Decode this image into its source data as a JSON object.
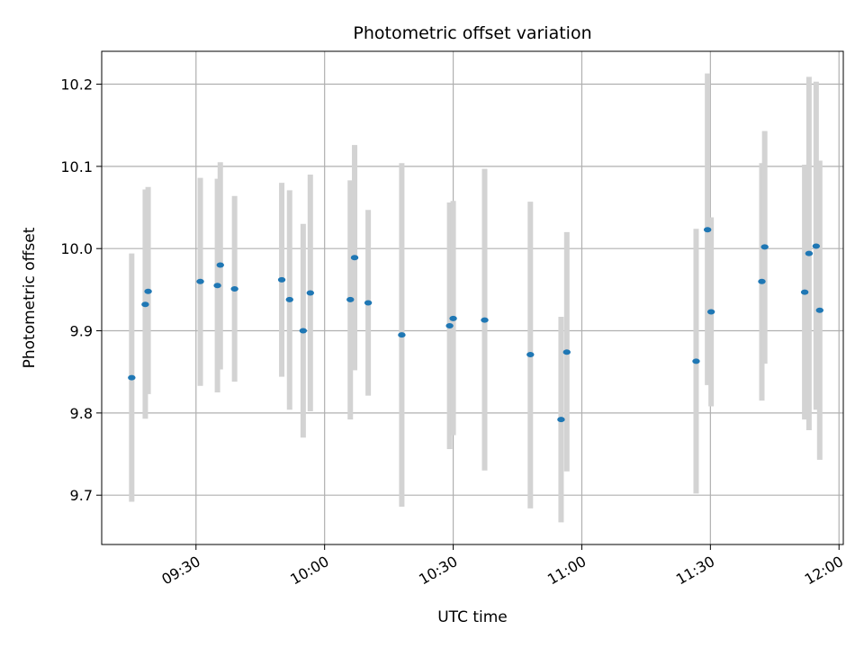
{
  "chart_data": {
    "type": "scatter",
    "title": "Photometric offset variation",
    "xlabel": "UTC time",
    "ylabel": "Photometric offset",
    "xlim": [
      "09:08",
      "12:01"
    ],
    "ylim": [
      9.64,
      10.24
    ],
    "xticks": [
      "09:30",
      "10:00",
      "10:30",
      "11:00",
      "11:30",
      "12:00"
    ],
    "yticks": [
      "9.7",
      "9.8",
      "9.9",
      "10.0",
      "10.1",
      "10.2"
    ],
    "grid": true,
    "legend": "none",
    "point_color": "#1f77b4",
    "errorbar_color": "#d3d3d3",
    "points": [
      {
        "x": "09:15:00",
        "y": 9.843,
        "ylow": 9.692,
        "yhigh": 9.994
      },
      {
        "x": "09:18:10",
        "y": 9.932,
        "ylow": 9.793,
        "yhigh": 10.072
      },
      {
        "x": "09:18:50",
        "y": 9.948,
        "ylow": 9.823,
        "yhigh": 10.075
      },
      {
        "x": "09:31:00",
        "y": 9.96,
        "ylow": 9.833,
        "yhigh": 10.086
      },
      {
        "x": "09:35:00",
        "y": 9.955,
        "ylow": 9.825,
        "yhigh": 10.085
      },
      {
        "x": "09:35:40",
        "y": 9.98,
        "ylow": 9.853,
        "yhigh": 10.105
      },
      {
        "x": "09:39:00",
        "y": 9.951,
        "ylow": 9.838,
        "yhigh": 10.064
      },
      {
        "x": "09:50:00",
        "y": 9.962,
        "ylow": 9.844,
        "yhigh": 10.08
      },
      {
        "x": "09:51:50",
        "y": 9.938,
        "ylow": 9.804,
        "yhigh": 10.071
      },
      {
        "x": "09:55:00",
        "y": 9.9,
        "ylow": 9.77,
        "yhigh": 10.03
      },
      {
        "x": "09:56:40",
        "y": 9.946,
        "ylow": 9.802,
        "yhigh": 10.09
      },
      {
        "x": "10:06:00",
        "y": 9.938,
        "ylow": 9.792,
        "yhigh": 10.083
      },
      {
        "x": "10:07:00",
        "y": 9.989,
        "ylow": 9.852,
        "yhigh": 10.126
      },
      {
        "x": "10:10:10",
        "y": 9.934,
        "ylow": 9.821,
        "yhigh": 10.047
      },
      {
        "x": "10:18:00",
        "y": 9.895,
        "ylow": 9.686,
        "yhigh": 10.104
      },
      {
        "x": "10:29:10",
        "y": 9.906,
        "ylow": 9.756,
        "yhigh": 10.056
      },
      {
        "x": "10:30:00",
        "y": 9.915,
        "ylow": 9.773,
        "yhigh": 10.058
      },
      {
        "x": "10:37:20",
        "y": 9.913,
        "ylow": 9.73,
        "yhigh": 10.097
      },
      {
        "x": "10:48:00",
        "y": 9.871,
        "ylow": 9.684,
        "yhigh": 10.057
      },
      {
        "x": "10:55:10",
        "y": 9.792,
        "ylow": 9.667,
        "yhigh": 9.917
      },
      {
        "x": "10:56:30",
        "y": 9.874,
        "ylow": 9.729,
        "yhigh": 10.02
      },
      {
        "x": "11:26:40",
        "y": 9.863,
        "ylow": 9.702,
        "yhigh": 10.024
      },
      {
        "x": "11:29:20",
        "y": 10.023,
        "ylow": 9.834,
        "yhigh": 10.213
      },
      {
        "x": "11:30:10",
        "y": 9.923,
        "ylow": 9.808,
        "yhigh": 10.038
      },
      {
        "x": "11:42:00",
        "y": 9.96,
        "ylow": 9.815,
        "yhigh": 10.104
      },
      {
        "x": "11:42:40",
        "y": 10.002,
        "ylow": 9.86,
        "yhigh": 10.143
      },
      {
        "x": "11:52:00",
        "y": 9.947,
        "ylow": 9.792,
        "yhigh": 10.102
      },
      {
        "x": "11:53:00",
        "y": 9.994,
        "ylow": 9.779,
        "yhigh": 10.209
      },
      {
        "x": "11:54:40",
        "y": 10.003,
        "ylow": 9.804,
        "yhigh": 10.203
      },
      {
        "x": "11:55:30",
        "y": 9.925,
        "ylow": 9.743,
        "yhigh": 10.107
      }
    ]
  }
}
